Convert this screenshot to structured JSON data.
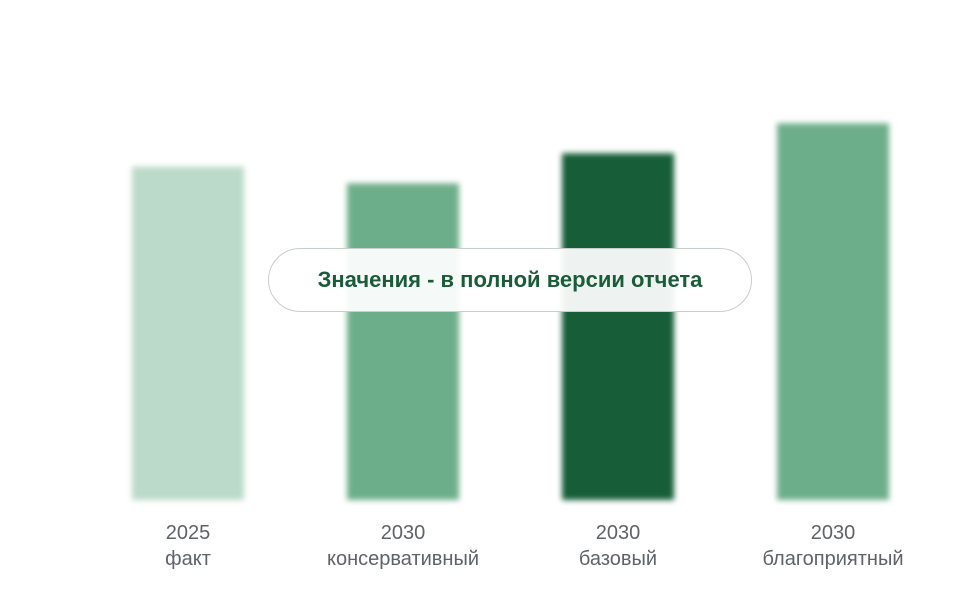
{
  "chart_data": {
    "type": "bar",
    "categories": [
      [
        "2025",
        "факт"
      ],
      [
        "2030",
        "консервативный"
      ],
      [
        "2030",
        "базовый"
      ],
      [
        "2030",
        "благоприятный"
      ]
    ],
    "values": [
      100,
      95,
      104,
      113
    ],
    "ylim": [
      0,
      150
    ],
    "grid": false,
    "legend": "none",
    "bar_colors": [
      "#bcdac9",
      "#6dae8a",
      "#175d38",
      "#6dae8a"
    ],
    "blurred": true
  },
  "overlay": {
    "message": "Значения - в полной версии отчета"
  },
  "colors": {
    "tick_text": "#5f6368",
    "accent": "#1a5c38"
  }
}
